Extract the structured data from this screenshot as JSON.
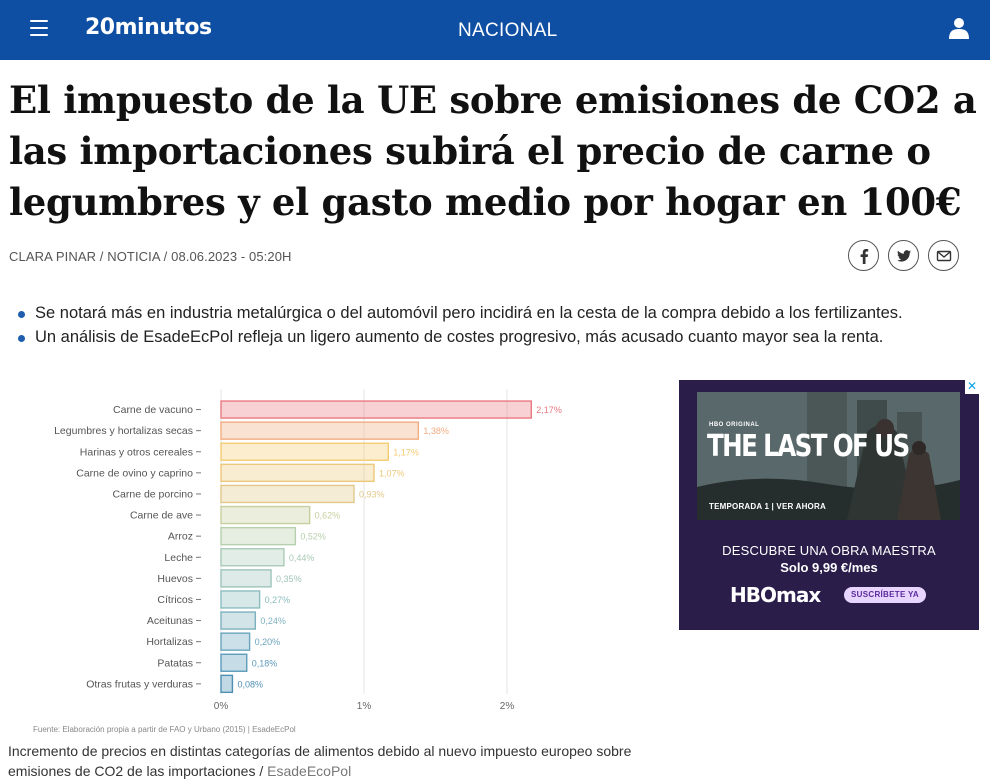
{
  "header": {
    "brand": "20minutos",
    "section": "NACIONAL",
    "menu_icon": "hamburger-menu-icon",
    "user_icon": "user-icon",
    "background": "#0e4fa3"
  },
  "article": {
    "headline": "El impuesto de la UE sobre emisiones de CO2 a las importaciones subirá el precio de carne o legumbres y el gasto medio por hogar en 100€",
    "author": "CLARA PINAR",
    "type": "NOTICIA",
    "date": "08.06.2023 - 05:20H",
    "share_icons": [
      "facebook-icon",
      "twitter-icon",
      "email-icon"
    ],
    "bullets": [
      "Se notará más en industria metalúrgica o del automóvil pero incidirá en la cesta de la compra debido a los fertilizantes.",
      "Un análisis de EsadeEcPol refleja un ligero aumento de costes progresivo, más acusado cuanto mayor sea la renta."
    ],
    "caption": "Incremento de precios en distintas categorías de alimentos debido al nuevo impuesto europeo sobre emisiones de CO2 de las importaciones / ",
    "caption_source": "EsadeEcoPol"
  },
  "chart_data": {
    "type": "bar",
    "orientation": "horizontal",
    "categories": [
      "Carne de vacuno",
      "Legumbres y hortalizas secas",
      "Harinas y otros cereales",
      "Carne de ovino y caprino",
      "Carne de porcino",
      "Carne de ave",
      "Arroz",
      "Leche",
      "Huevos",
      "Cítricos",
      "Aceitunas",
      "Hortalizas",
      "Patatas",
      "Otras frutas y verduras"
    ],
    "values": [
      2.17,
      1.38,
      1.17,
      1.07,
      0.93,
      0.62,
      0.52,
      0.44,
      0.35,
      0.27,
      0.24,
      0.2,
      0.18,
      0.08
    ],
    "labels": [
      "2,17%",
      "1,38%",
      "1,17%",
      "1,07%",
      "0,93%",
      "0,62%",
      "0,52%",
      "0,44%",
      "0,35%",
      "0,27%",
      "0,24%",
      "0,20%",
      "0,18%",
      "0,08%"
    ],
    "colors": [
      "#e97a82",
      "#f1ad80",
      "#f4cc72",
      "#ecc87a",
      "#e2c889",
      "#c7cf9f",
      "#b6cfac",
      "#a9cab6",
      "#9ec4ba",
      "#8cbcbf",
      "#7eb1be",
      "#6aa5bd",
      "#5c9bbb",
      "#4e8fb4"
    ],
    "x_ticks": [
      "0%",
      "1%",
      "2%"
    ],
    "xlim": [
      0,
      2.3
    ],
    "grid": true,
    "source_note": "Fuente: Elaboración propia a partir de FAO y Urbano (2015) | EsadeEcPol"
  },
  "ad": {
    "close": "✕",
    "hbo_original": "HBO ORIGINAL",
    "title": "THE LAST OF US",
    "season": "TEMPORADA 1 | VER AHORA",
    "line1": "DESCUBRE UNA OBRA MAESTRA",
    "line2": "Solo 9,99 €/mes",
    "brand": "HBOmax",
    "cta": "SUSCRÍBETE YA"
  }
}
